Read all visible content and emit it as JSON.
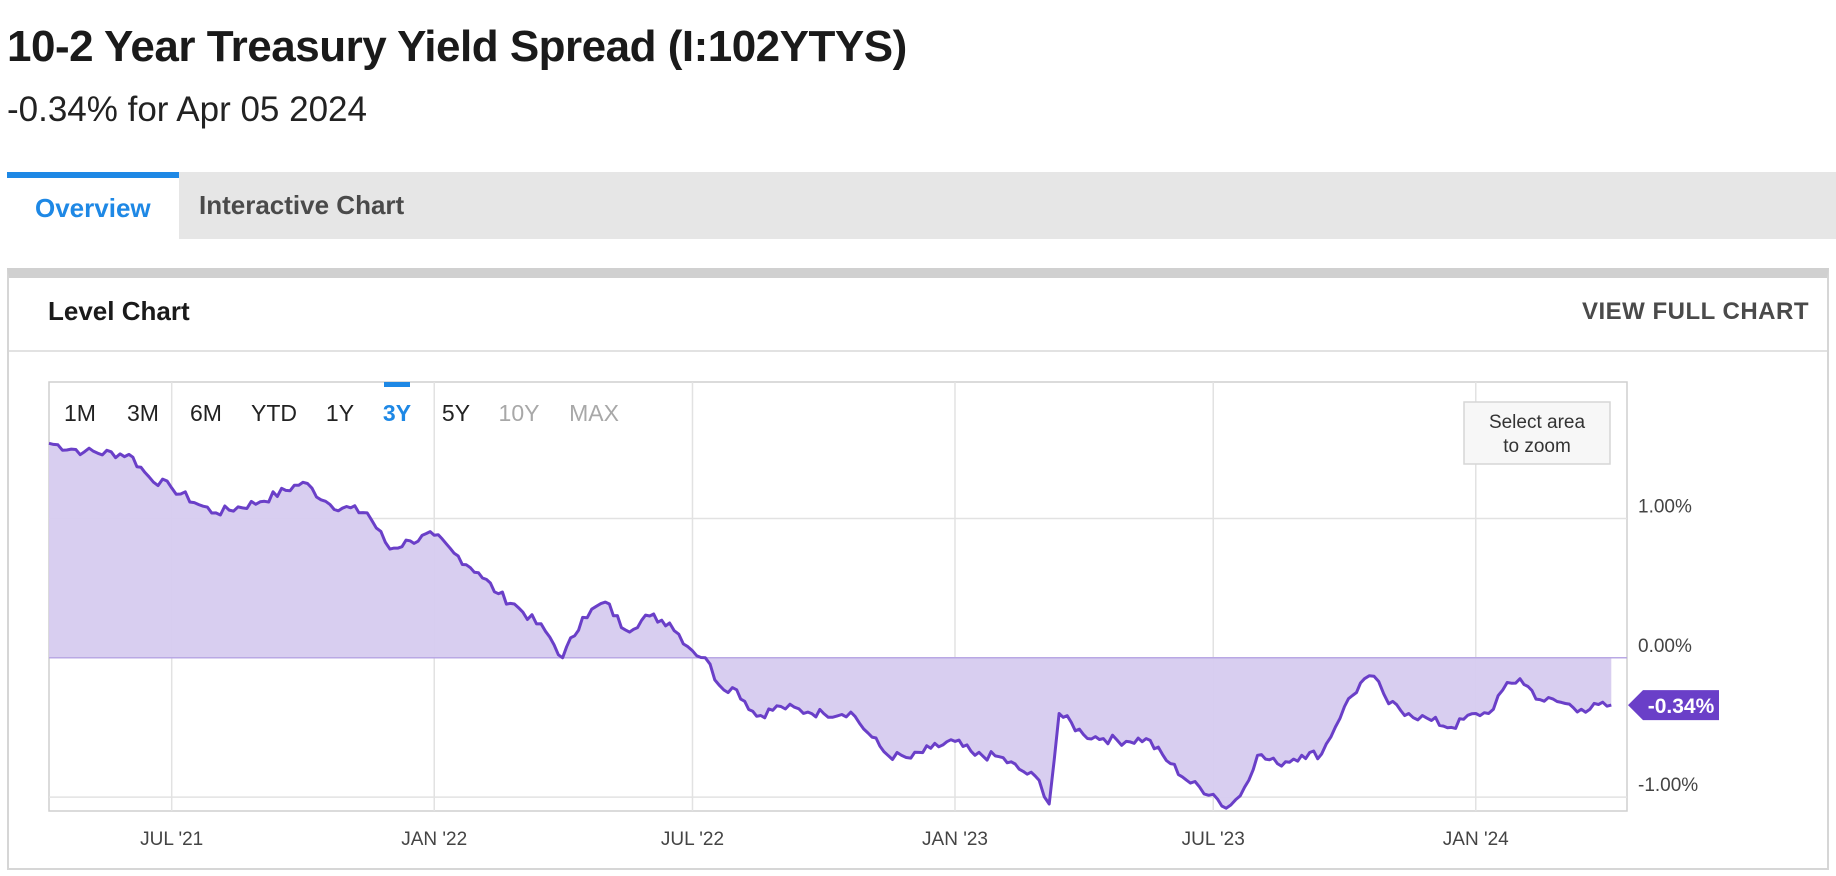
{
  "header": {
    "title": "10-2 Year Treasury Yield Spread (I:102YTYS)",
    "subtitle": "-0.34% for Apr 05 2024"
  },
  "tabs": [
    {
      "label": "Overview",
      "active": true
    },
    {
      "label": "Interactive Chart",
      "active": false
    }
  ],
  "panel": {
    "title": "Level Chart",
    "view_full_label": "VIEW FULL CHART"
  },
  "chart_controls": {
    "ranges": [
      {
        "label": "1M",
        "state": "normal"
      },
      {
        "label": "3M",
        "state": "normal"
      },
      {
        "label": "6M",
        "state": "normal"
      },
      {
        "label": "YTD",
        "state": "normal"
      },
      {
        "label": "1Y",
        "state": "normal"
      },
      {
        "label": "3Y",
        "state": "active"
      },
      {
        "label": "5Y",
        "state": "normal"
      },
      {
        "label": "10Y",
        "state": "disabled"
      },
      {
        "label": "MAX",
        "state": "disabled"
      }
    ],
    "zoom_hint_line1": "Select area",
    "zoom_hint_line2": "to zoom"
  },
  "colors": {
    "accent": "#1e88e5",
    "series_line": "#6a3fc8",
    "series_fill": "#d6cbef",
    "label_bg": "#6a3fc8"
  },
  "chart_data": {
    "type": "area",
    "title": "Level Chart",
    "xlabel": "",
    "ylabel": "",
    "x_tick_labels": [
      "JUL '21",
      "JAN '22",
      "JUL '22",
      "JAN '23",
      "JUL '23",
      "JAN '24"
    ],
    "y_tick_labels": [
      "1.00%",
      "0.00%",
      "-1.00%"
    ],
    "y_ticks": [
      1.0,
      0.0,
      -1.0
    ],
    "ylim": [
      -1.1,
      1.98
    ],
    "xlim": [
      "2021-04-06",
      "2024-04-16"
    ],
    "last_value_label": "-0.34%",
    "grid": true,
    "series": [
      {
        "x": [
          "2021-04-06",
          "2021-05-01",
          "2021-06-01",
          "2021-06-15",
          "2021-07-01",
          "2021-07-20",
          "2021-08-01",
          "2021-09-01",
          "2021-10-01",
          "2021-10-20",
          "2021-11-15",
          "2021-12-01",
          "2021-12-15",
          "2022-01-01",
          "2022-01-15",
          "2022-02-01",
          "2022-02-15",
          "2022-03-01",
          "2022-03-20",
          "2022-04-01",
          "2022-04-15",
          "2022-05-01",
          "2022-05-15",
          "2022-06-01",
          "2022-06-15",
          "2022-07-01",
          "2022-07-10",
          "2022-07-20",
          "2022-08-01",
          "2022-08-15",
          "2022-09-01",
          "2022-09-20",
          "2022-10-01",
          "2022-10-20",
          "2022-11-01",
          "2022-11-15",
          "2022-12-01",
          "2022-12-15",
          "2023-01-01",
          "2023-01-15",
          "2023-02-01",
          "2023-02-15",
          "2023-03-01",
          "2023-03-08",
          "2023-03-15",
          "2023-04-01",
          "2023-04-15",
          "2023-05-01",
          "2023-05-15",
          "2023-06-01",
          "2023-06-15",
          "2023-07-01",
          "2023-07-10",
          "2023-07-20",
          "2023-08-01",
          "2023-08-15",
          "2023-09-01",
          "2023-09-15",
          "2023-10-01",
          "2023-10-15",
          "2023-10-25",
          "2023-11-01",
          "2023-11-15",
          "2023-12-01",
          "2023-12-15",
          "2024-01-01",
          "2024-01-10",
          "2024-01-20",
          "2024-02-01",
          "2024-02-15",
          "2024-03-01",
          "2024-03-15",
          "2024-04-05"
        ],
        "y": [
          1.54,
          1.48,
          1.46,
          1.3,
          1.22,
          1.1,
          1.04,
          1.12,
          1.26,
          1.1,
          1.04,
          0.78,
          0.84,
          0.88,
          0.75,
          0.61,
          0.46,
          0.36,
          0.19,
          0.0,
          0.29,
          0.4,
          0.2,
          0.3,
          0.25,
          0.05,
          0.0,
          -0.2,
          -0.23,
          -0.42,
          -0.35,
          -0.39,
          -0.4,
          -0.39,
          -0.54,
          -0.7,
          -0.72,
          -0.65,
          -0.6,
          -0.7,
          -0.71,
          -0.8,
          -0.88,
          -1.05,
          -0.4,
          -0.55,
          -0.58,
          -0.6,
          -0.58,
          -0.76,
          -0.9,
          -0.98,
          -1.08,
          -0.99,
          -0.7,
          -0.76,
          -0.7,
          -0.69,
          -0.35,
          -0.15,
          -0.17,
          -0.33,
          -0.4,
          -0.45,
          -0.5,
          -0.4,
          -0.4,
          -0.23,
          -0.15,
          -0.3,
          -0.32,
          -0.37,
          -0.34
        ]
      }
    ]
  }
}
